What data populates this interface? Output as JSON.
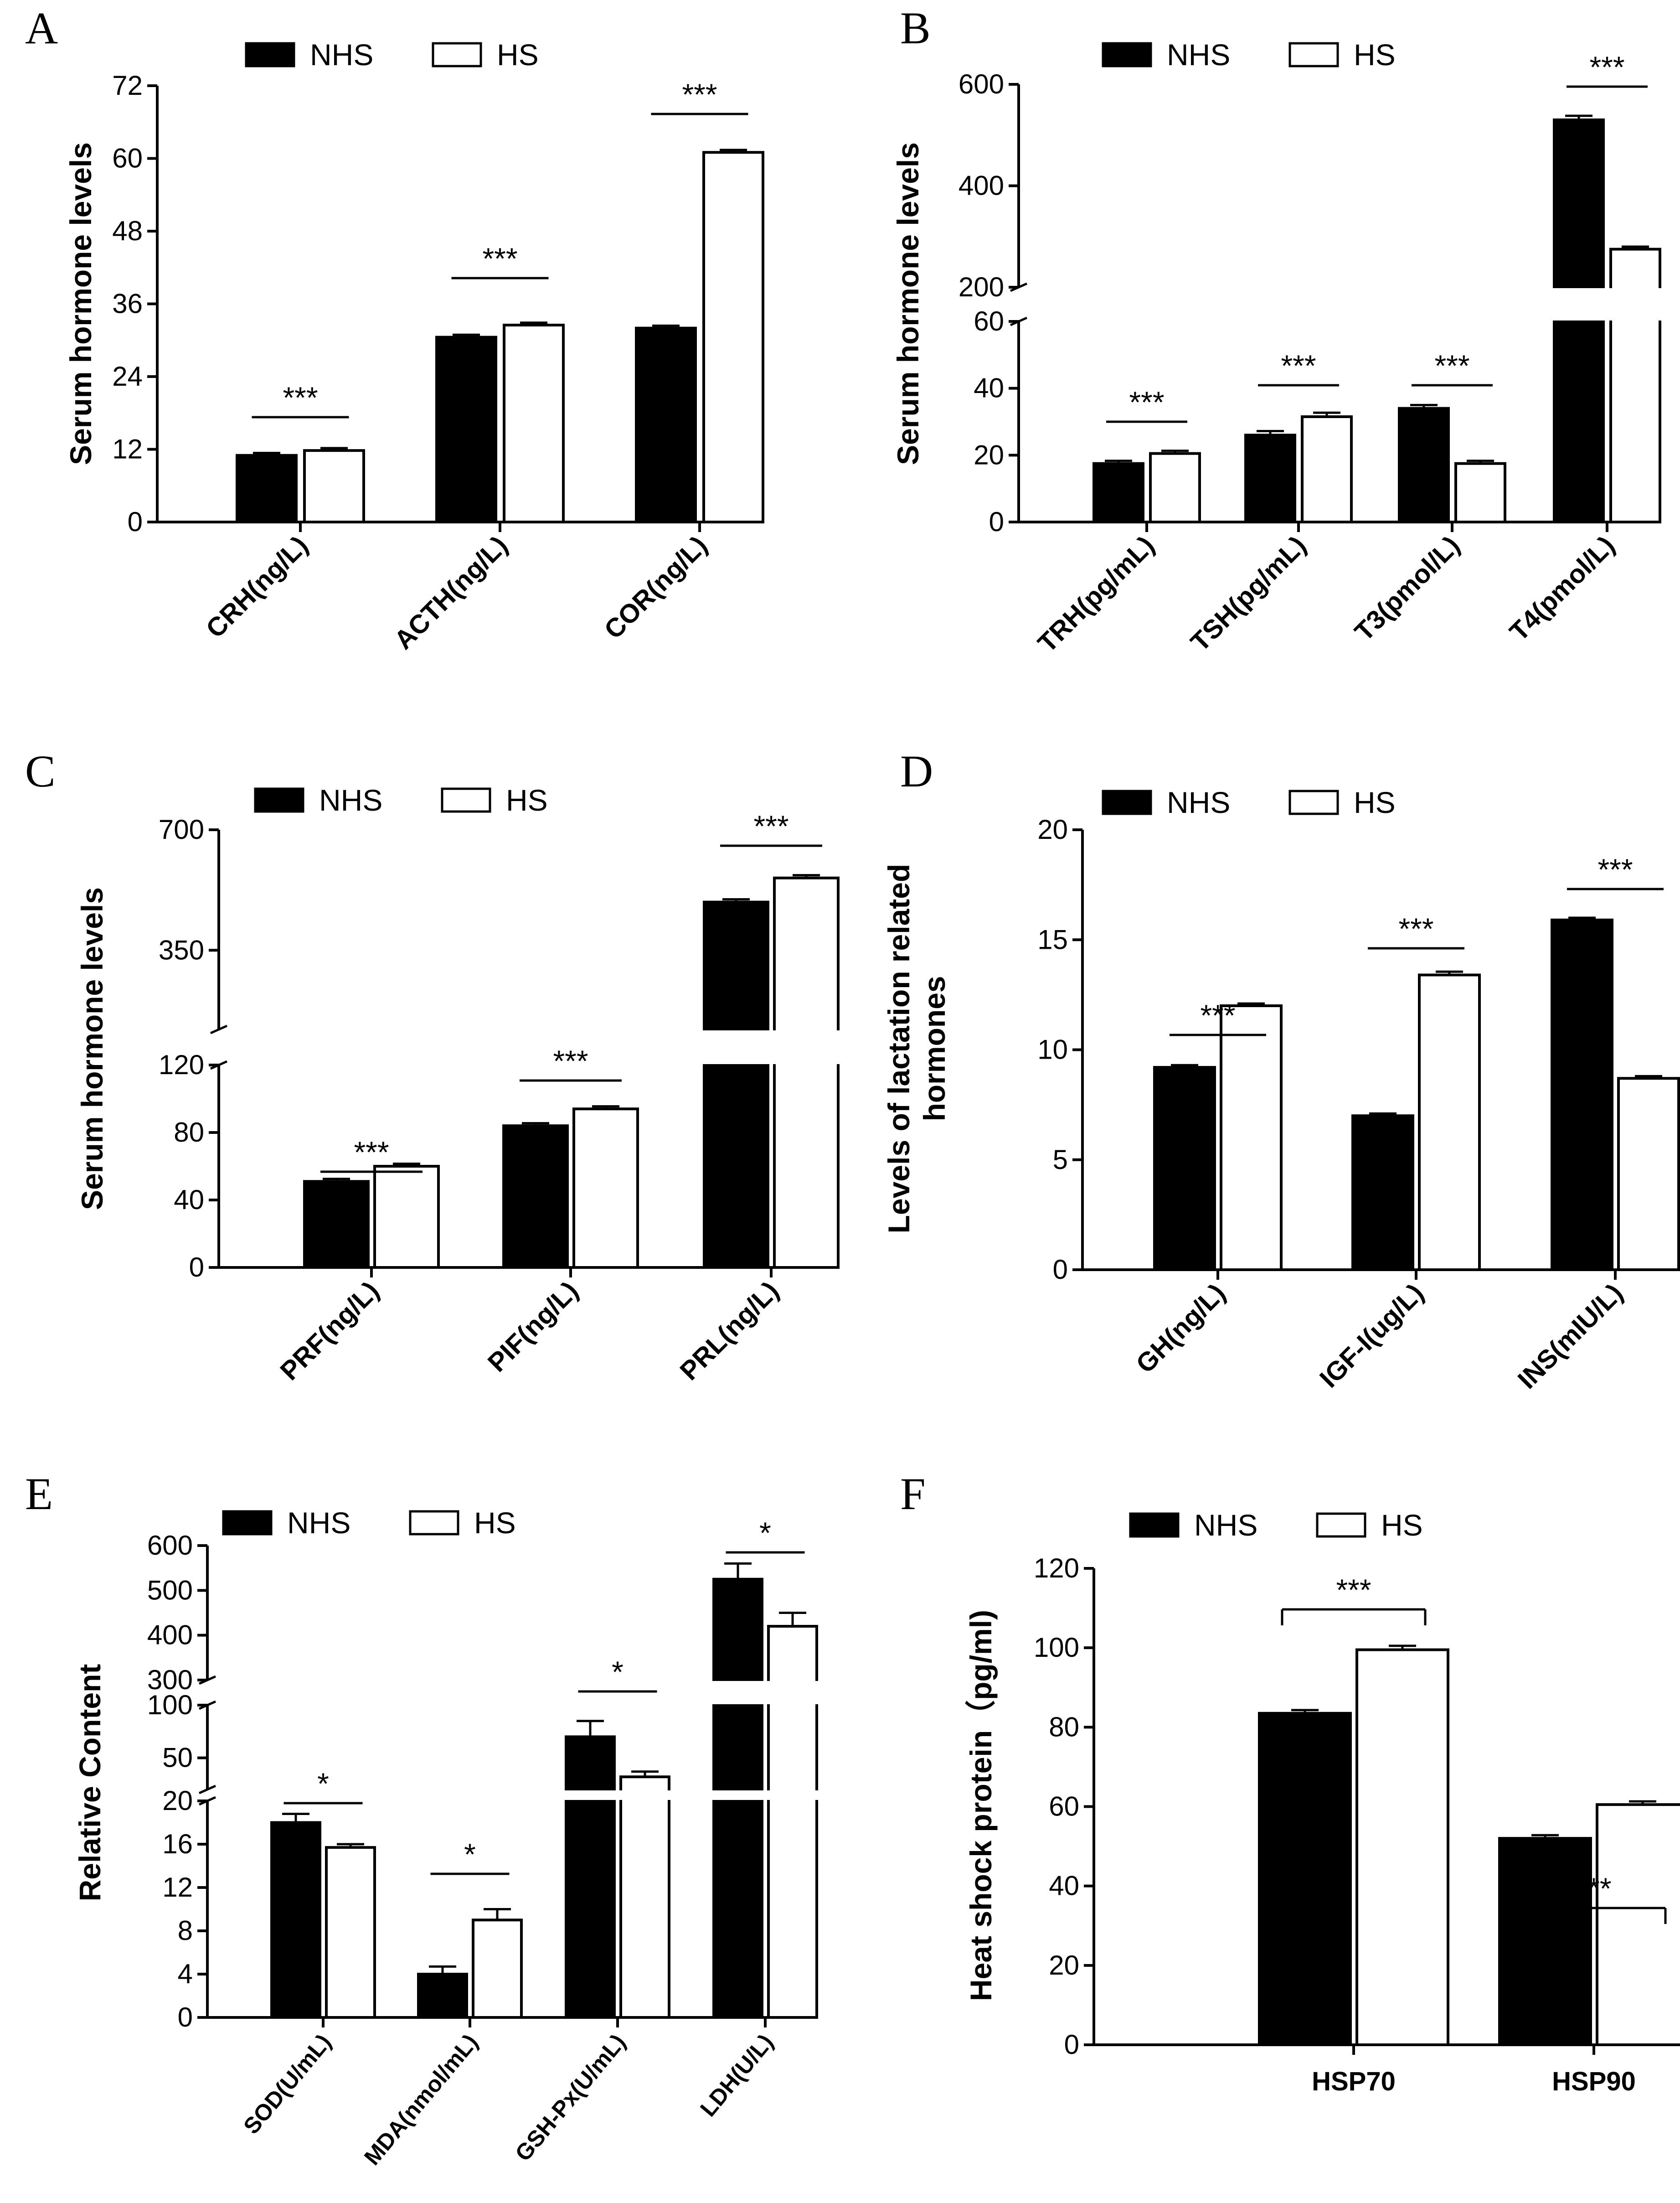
{
  "figure": {
    "legend": {
      "nhs": "NHS",
      "hs": "HS"
    },
    "colors": {
      "nhs": "#000000",
      "hs": "#ffffff",
      "stroke": "#000000"
    }
  },
  "chart_data": [
    {
      "panel": "A",
      "type": "bar",
      "ylabel": "Serum hormone levels",
      "categories": [
        "CRH(ng/L)",
        "ACTH(ng/L)",
        "COR(ng/L)"
      ],
      "series": [
        {
          "name": "NHS",
          "values": [
            11,
            30.5,
            32
          ],
          "errors": [
            0.4,
            0.4,
            0.4
          ]
        },
        {
          "name": "HS",
          "values": [
            11.8,
            32.5,
            61
          ],
          "errors": [
            0.4,
            0.4,
            0.4
          ]
        }
      ],
      "yticks": [
        "0",
        "12",
        "24",
        "36",
        "48",
        "60",
        "72"
      ],
      "ylim": [
        0,
        72
      ],
      "significance": [
        "***",
        "***",
        "***"
      ]
    },
    {
      "panel": "B",
      "type": "bar",
      "ylabel": "Serum hormone levels",
      "categories": [
        "TRH(pg/mL)",
        "TSH(pg/mL)",
        "T3(pmol/L)",
        "T4(pmol/L)"
      ],
      "series": [
        {
          "name": "NHS",
          "values": [
            17.5,
            26,
            34,
            530
          ],
          "errors": [
            0.8,
            1.2,
            1,
            8
          ]
        },
        {
          "name": "HS",
          "values": [
            20.5,
            31.5,
            17.5,
            275
          ],
          "errors": [
            0.8,
            1.2,
            0.8,
            5
          ]
        }
      ],
      "yticks": [
        "0",
        "20",
        "40",
        "60",
        "200",
        "400",
        "600"
      ],
      "ylim": [
        0,
        600
      ],
      "axis_break": {
        "lower": [
          0,
          60
        ],
        "upper": [
          200,
          600
        ]
      },
      "significance": [
        "***",
        "***",
        "***",
        "***"
      ]
    },
    {
      "panel": "C",
      "type": "bar",
      "ylabel": "Serum hormone levels",
      "categories": [
        "PRF(ng/L)",
        "PIF(ng/L)",
        "PRL(ng/L)"
      ],
      "series": [
        {
          "name": "NHS",
          "values": [
            51,
            84,
            490
          ],
          "errors": [
            1.5,
            1.5,
            8
          ]
        },
        {
          "name": "HS",
          "values": [
            60,
            94,
            560
          ],
          "errors": [
            1.5,
            1.5,
            8
          ]
        }
      ],
      "yticks": [
        "0",
        "40",
        "80",
        "120",
        "350",
        "700"
      ],
      "ylim": [
        0,
        700
      ],
      "axis_break": {
        "lower": [
          0,
          120
        ],
        "upper": [
          120,
          700
        ]
      },
      "significance": [
        "***",
        "***",
        "***"
      ]
    },
    {
      "panel": "D",
      "type": "bar",
      "ylabel": "Levels of lactation related hormones",
      "ylabel_lines": [
        "Levels of lactation related",
        "hormones"
      ],
      "categories": [
        "GH(ng/L)",
        "IGF-I(ug/L)",
        "INS(mIU/L)"
      ],
      "series": [
        {
          "name": "NHS",
          "values": [
            9.2,
            7,
            15.9
          ],
          "errors": [
            0.1,
            0.1,
            0.1
          ]
        },
        {
          "name": "HS",
          "values": [
            12,
            13.4,
            8.7
          ],
          "errors": [
            0.1,
            0.15,
            0.1
          ]
        }
      ],
      "yticks": [
        "0",
        "5",
        "10",
        "15",
        "20"
      ],
      "ylim": [
        0,
        20
      ],
      "significance": [
        "***",
        "***",
        "***"
      ]
    },
    {
      "panel": "E",
      "type": "bar",
      "ylabel": "Relative Content",
      "categories": [
        "SOD(U/mL)",
        "MDA(nmol/mL)",
        "GSH-Px(U/mL)",
        "LDH(U/L)"
      ],
      "series": [
        {
          "name": "NHS",
          "values": [
            18,
            4,
            70,
            525
          ],
          "errors": [
            0.8,
            0.7,
            15,
            35
          ]
        },
        {
          "name": "HS",
          "values": [
            15.7,
            9,
            32,
            420
          ],
          "errors": [
            0.3,
            1,
            5,
            30
          ]
        }
      ],
      "yticks": [
        "0",
        "4",
        "8",
        "12",
        "16",
        "20",
        "50",
        "100",
        "300",
        "400",
        "500",
        "600"
      ],
      "ylim": [
        0,
        600
      ],
      "axis_break": {
        "lower": [
          0,
          20
        ],
        "middle": [
          20,
          100
        ],
        "upper": [
          300,
          600
        ]
      },
      "significance": [
        "*",
        "*",
        "*",
        "*"
      ]
    },
    {
      "panel": "F",
      "type": "bar",
      "ylabel": "Heat shock protein（pg/ml)",
      "categories": [
        "HSP70",
        "HSP90"
      ],
      "series": [
        {
          "name": "NHS",
          "values": [
            83.5,
            52
          ],
          "errors": [
            0.8,
            0.8
          ]
        },
        {
          "name": "HS",
          "values": [
            99.5,
            60.5
          ],
          "errors": [
            1,
            0.8
          ]
        }
      ],
      "yticks": [
        "0",
        "20",
        "40",
        "60",
        "80",
        "100",
        "120"
      ],
      "ylim": [
        0,
        120
      ],
      "significance": [
        "***",
        "***"
      ]
    }
  ]
}
